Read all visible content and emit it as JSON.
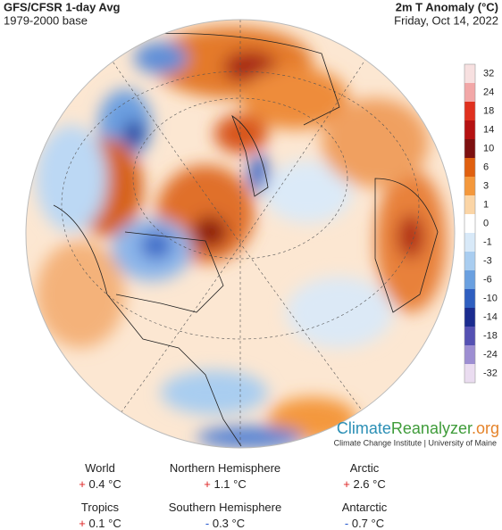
{
  "header": {
    "title": "GFS/CFSR 1-day Avg",
    "subtitle": "1979-2000 base",
    "variable": "2m T Anomaly (°C)",
    "date": "Friday, Oct 14, 2022"
  },
  "colorbar": {
    "labels": [
      32,
      24,
      18,
      14,
      10,
      6,
      3,
      1,
      0,
      -1,
      -3,
      -6,
      -10,
      -14,
      -18,
      -24,
      -32
    ],
    "colors": [
      "#f7e0e0",
      "#f2a7a7",
      "#e0301e",
      "#b51212",
      "#7d1010",
      "#e0600f",
      "#f4983c",
      "#fbd5a6",
      "#ffffff",
      "#d8e9f8",
      "#a9cdf0",
      "#6aa0e0",
      "#2f5fc0",
      "#1b2c8f",
      "#5551b3",
      "#9d8ed2",
      "#eadcf0"
    ]
  },
  "logo": {
    "climate": "Climate",
    "reanalyzer": "Reanalyzer",
    "org": ".org",
    "credit": "Climate Change Institute | University of Maine"
  },
  "stats": [
    {
      "region": "World",
      "sign": "+",
      "value": "0.4 °C"
    },
    {
      "region": "Northern Hemisphere",
      "sign": "+",
      "value": "1.1 °C"
    },
    {
      "region": "Arctic",
      "sign": "+",
      "value": "2.6 °C"
    },
    {
      "region": "Tropics",
      "sign": "+",
      "value": "0.1 °C"
    },
    {
      "region": "Southern Hemisphere",
      "sign": "-",
      "value": "0.3 °C"
    },
    {
      "region": "Antarctic",
      "sign": "-",
      "value": "0.7 °C"
    }
  ]
}
